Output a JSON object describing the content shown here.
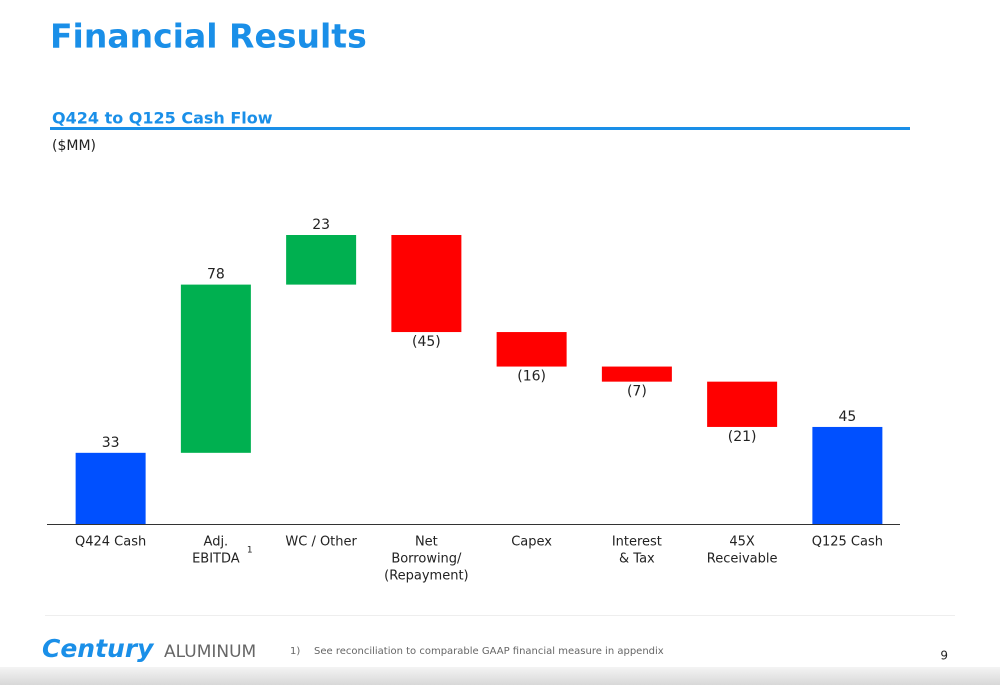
{
  "title": "Financial Results",
  "chart_data": {
    "type": "waterfall",
    "title": "Q424 to Q125 Cash Flow",
    "subtitle": "($MM)",
    "categories": [
      [
        "Q424 Cash"
      ],
      [
        "Adj.",
        "EBITDA"
      ],
      [
        "WC / Other"
      ],
      [
        "Net",
        "Borrowing/",
        "(Repayment)"
      ],
      [
        "Capex"
      ],
      [
        "Interest",
        "& Tax"
      ],
      [
        "45X",
        "Receivable"
      ],
      [
        "Q125 Cash"
      ]
    ],
    "category_superscript": "1",
    "measure": [
      "total",
      "relative",
      "relative",
      "relative",
      "relative",
      "relative",
      "relative",
      "total"
    ],
    "values": [
      33,
      78,
      23,
      -45,
      -16,
      -7,
      -21,
      45
    ],
    "value_labels": [
      "33",
      "78",
      "23",
      "(45)",
      "(16)",
      "(7)",
      "(21)",
      "45"
    ],
    "colors": {
      "total": "#0050ff",
      "increase": "#00b050",
      "decrease": "#ff0000"
    }
  },
  "footer": {
    "brand_bold": "Century",
    "brand_light": "ALUMINUM",
    "footnote_marker": "1)",
    "footnote": "See reconciliation to comparable GAAP financial measure in appendix",
    "page": "9"
  }
}
